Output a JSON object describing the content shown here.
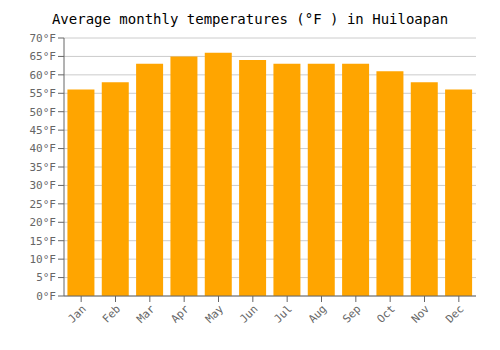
{
  "chart_data": {
    "type": "bar",
    "title": "Average monthly temperatures (°F ) in Huiloapan",
    "categories": [
      "Jan",
      "Feb",
      "Mar",
      "Apr",
      "May",
      "Jun",
      "Jul",
      "Aug",
      "Sep",
      "Oct",
      "Nov",
      "Dec"
    ],
    "values": [
      56,
      58,
      63,
      65,
      66,
      64,
      63,
      63,
      63,
      61,
      58,
      56
    ],
    "color": "#FFA500",
    "ylim": [
      0,
      70
    ],
    "yticks": [
      {
        "value": 0,
        "label": "0°F"
      },
      {
        "value": 5,
        "label": "5°F"
      },
      {
        "value": 10,
        "label": "10°F"
      },
      {
        "value": 15,
        "label": "15°F"
      },
      {
        "value": 20,
        "label": "20°F"
      },
      {
        "value": 25,
        "label": "25°F"
      },
      {
        "value": 30,
        "label": "30°F"
      },
      {
        "value": 35,
        "label": "35°F"
      },
      {
        "value": 40,
        "label": "40°F"
      },
      {
        "value": 45,
        "label": "45°F"
      },
      {
        "value": 50,
        "label": "50°F"
      },
      {
        "value": 55,
        "label": "55°F"
      },
      {
        "value": 60,
        "label": "60°F"
      },
      {
        "value": 65,
        "label": "65°F"
      },
      {
        "value": 70,
        "label": "70°F"
      }
    ],
    "grid": true
  }
}
